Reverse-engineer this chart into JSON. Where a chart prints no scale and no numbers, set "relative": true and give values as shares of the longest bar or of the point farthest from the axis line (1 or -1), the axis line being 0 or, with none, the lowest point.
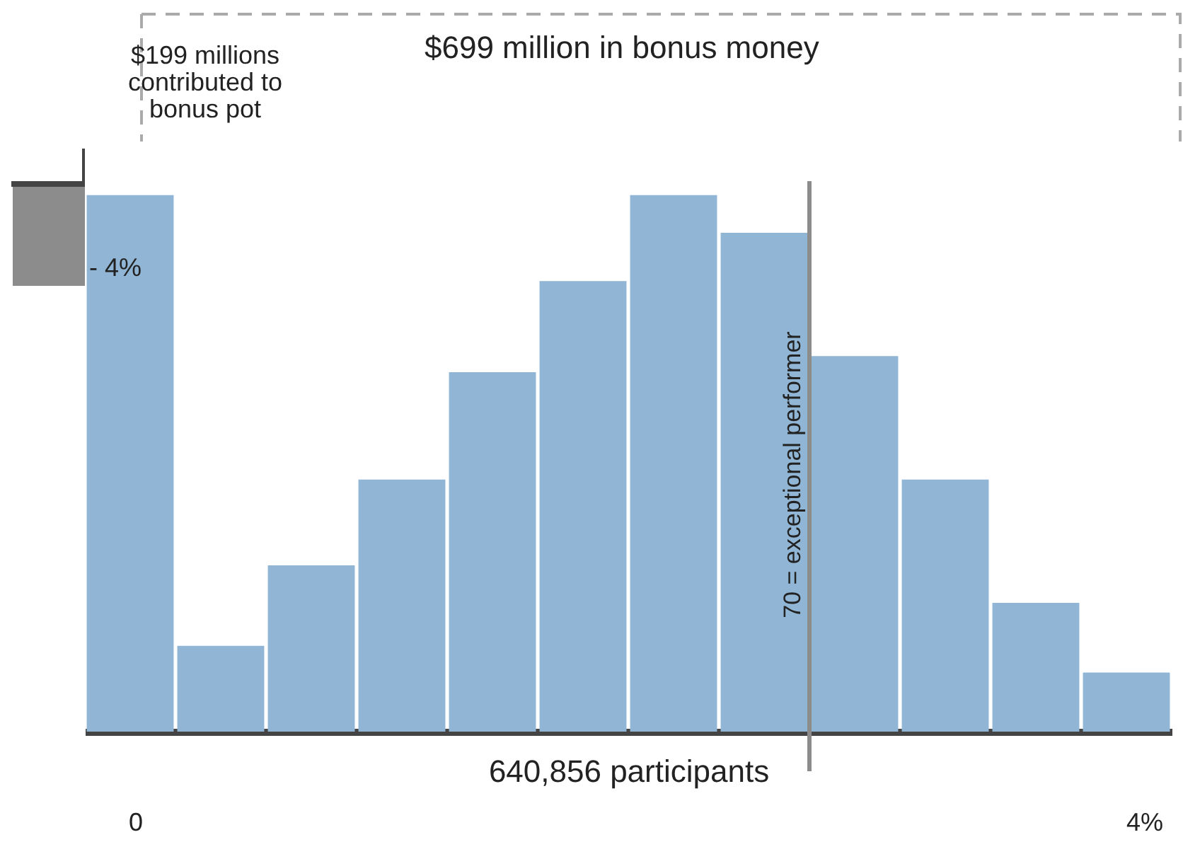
{
  "chart_data": {
    "type": "bar",
    "title": "$699 million in bonus money",
    "xlabel": "640,856 participants",
    "categories": [
      null,
      null,
      null,
      null,
      null,
      null,
      null,
      null,
      null,
      null,
      null,
      null
    ],
    "values": [
      1,
      0.16,
      0.31,
      0.47,
      0.67,
      0.84,
      1,
      0.93,
      0.7,
      0.47,
      0.24,
      0.11
    ],
    "color": "#91b6d5",
    "relative": true,
    "annotations": [
      "$199 millions contributed to bonus pot",
      "- 4%",
      "0",
      "4%",
      "70 = exceptional performer"
    ]
  }
}
